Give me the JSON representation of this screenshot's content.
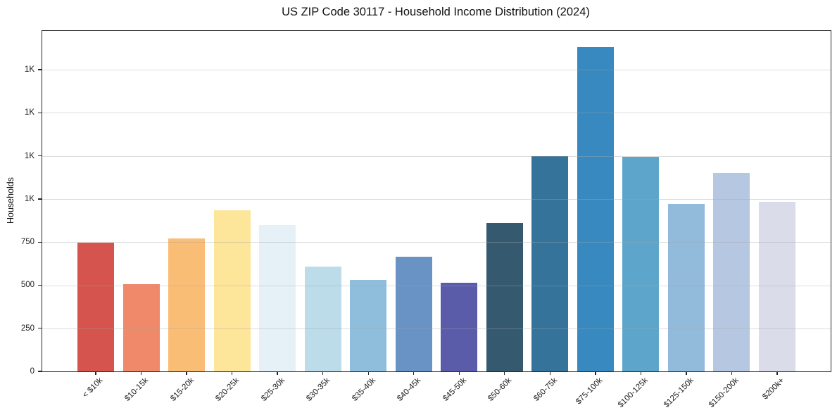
{
  "chart_data": {
    "type": "bar",
    "title": "US ZIP Code 30117 - Household Income Distribution (2024)",
    "xlabel": "",
    "ylabel": "Households",
    "categories": [
      "< $10k",
      "$10-15k",
      "$15-20k",
      "$20-25k",
      "$25-30k",
      "$30-35k",
      "$35-40k",
      "$40-45k",
      "$45-50k",
      "$50-60k",
      "$60-75k",
      "$75-100k",
      "$100-125k",
      "$125-150k",
      "$150-200k",
      "$200k+"
    ],
    "values": [
      745,
      505,
      770,
      935,
      850,
      610,
      530,
      665,
      515,
      860,
      1250,
      1880,
      1245,
      970,
      1150,
      985
    ],
    "bar_colors": [
      "#d5544e",
      "#f0886a",
      "#fabd75",
      "#fde59a",
      "#e6f1f7",
      "#bcdcea",
      "#8fbedd",
      "#6992c5",
      "#5a5caa",
      "#355a70",
      "#35739a",
      "#3789bf",
      "#5da5ca",
      "#92badb",
      "#b6c8e1",
      "#dadce9"
    ],
    "ylim": [
      0,
      1975
    ],
    "yticks": [
      {
        "value": 0,
        "label": "0"
      },
      {
        "value": 250,
        "label": "250"
      },
      {
        "value": 500,
        "label": "500"
      },
      {
        "value": 750,
        "label": "750"
      },
      {
        "value": 1000,
        "label": "1K"
      },
      {
        "value": 1250,
        "label": "1K"
      },
      {
        "value": 1500,
        "label": "1K"
      },
      {
        "value": 1750,
        "label": "1K"
      }
    ],
    "grid": "horizontal-over-bars",
    "legend": "none",
    "x_tick_rotation_deg": 45
  }
}
